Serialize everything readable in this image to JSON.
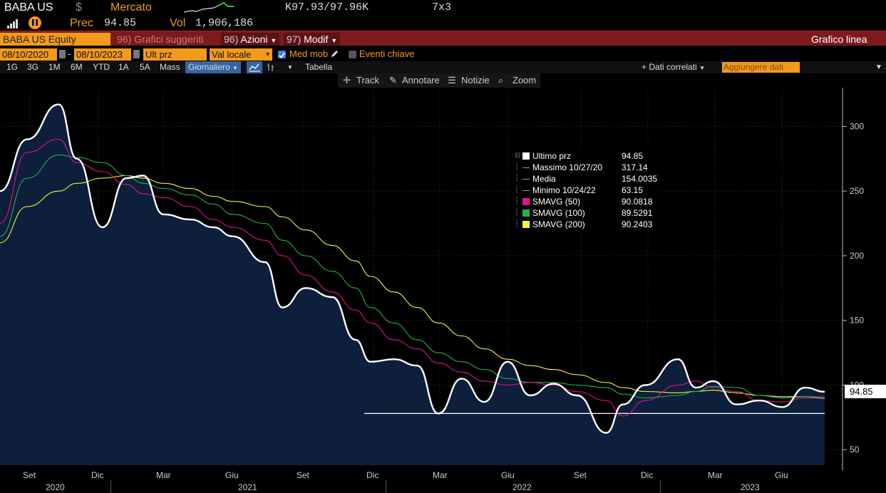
{
  "quote": {
    "ticker": "BABA US",
    "currency_symbol": "$",
    "market": "Mercato",
    "bid_ask": "K97.93/97.96K",
    "size": "7x3",
    "prev_label": "Prec",
    "prev_value": "94.85",
    "vol_label": "Vol",
    "vol_value": "1,906,186"
  },
  "function_bar": {
    "security": "BABA US Equity",
    "suggested": "96) Grafici suggeriti",
    "actions_num": "96)",
    "actions": "Azioni",
    "modify_num": "97)",
    "modify": "Modif",
    "chart_type": "Grafico linea"
  },
  "controls": {
    "start_date": "08/10/2020",
    "end_date": "08/10/2023",
    "field": "Ult prz",
    "currency": "Val locale",
    "moving_avg_label": "Med mob",
    "key_events_label": "Eventi chiave",
    "ranges": [
      "1G",
      "3G",
      "1M",
      "6M",
      "YTD",
      "1A",
      "5A",
      "Mass"
    ],
    "frequency": "Giornaliero",
    "table_label": "Tabella",
    "related_data": "Dati correlati",
    "add_data": "Aggiungere dati"
  },
  "toolbar": {
    "track": "Track",
    "annotate": "Annotare",
    "news": "Notizie",
    "zoom": "Zoom"
  },
  "legend": {
    "rows": [
      {
        "label": "Ultimo prz",
        "value": "94.85",
        "color": "#ffffff"
      },
      {
        "label": "Massimo 10/27/20",
        "value": "317.14",
        "color": "#888888"
      },
      {
        "label": "Media",
        "value": "154.0035",
        "color": "#888888"
      },
      {
        "label": "Minimo 10/24/22",
        "value": "63.15",
        "color": "#888888"
      },
      {
        "label": "SMAVG (50)",
        "value": "90.0818",
        "color": "#e0138c"
      },
      {
        "label": "SMAVG (100)",
        "value": "89.5291",
        "color": "#22b14c"
      },
      {
        "label": "SMAVG (200)",
        "value": "90.2403",
        "color": "#f5f537"
      }
    ]
  },
  "last_price_tag": "94.85",
  "chart_data": {
    "type": "line",
    "title": "",
    "xlabel": "",
    "ylabel": "",
    "ylim": [
      38,
      330
    ],
    "y_ticks": [
      50,
      100,
      150,
      200,
      250,
      300
    ],
    "y_tick_labels": [
      "50",
      "100",
      "150",
      "200",
      "250",
      "300"
    ],
    "grid": true,
    "x": [
      "2020-08-10",
      "2020-09-15",
      "2020-10-27",
      "2020-11-20",
      "2020-12-24",
      "2021-01-25",
      "2021-02-16",
      "2021-03-15",
      "2021-04-20",
      "2021-05-20",
      "2021-06-15",
      "2021-07-28",
      "2021-08-20",
      "2021-09-20",
      "2021-10-25",
      "2021-11-25",
      "2021-12-15",
      "2022-01-15",
      "2022-02-15",
      "2022-03-15",
      "2022-04-15",
      "2022-05-15",
      "2022-06-15",
      "2022-07-15",
      "2022-08-15",
      "2022-09-15",
      "2022-10-24",
      "2022-11-15",
      "2022-12-15",
      "2023-01-27",
      "2023-02-20",
      "2023-03-15",
      "2023-04-15",
      "2023-05-15",
      "2023-06-15",
      "2023-07-15",
      "2023-08-10"
    ],
    "series": [
      {
        "name": "Ultimo prz",
        "color": "#ffffff",
        "values": [
          250,
          290,
          317,
          275,
          222,
          260,
          262,
          232,
          228,
          222,
          215,
          195,
          160,
          175,
          168,
          135,
          118,
          120,
          115,
          78,
          105,
          87,
          118,
          92,
          101,
          92,
          63,
          85,
          100,
          120,
          98,
          103,
          85,
          88,
          83,
          98,
          94.85
        ]
      },
      {
        "name": "SMAVG (50)",
        "color": "#e0138c",
        "values": [
          225,
          280,
          290,
          272,
          265,
          255,
          248,
          245,
          238,
          228,
          222,
          212,
          200,
          185,
          172,
          158,
          148,
          135,
          128,
          117,
          110,
          103,
          100,
          102,
          100,
          95,
          88,
          76,
          88,
          100,
          103,
          98,
          95,
          88,
          87,
          90,
          90.08
        ]
      },
      {
        "name": "SMAVG (100)",
        "color": "#22b14c",
        "values": [
          215,
          260,
          278,
          276,
          272,
          262,
          256,
          252,
          247,
          240,
          232,
          225,
          212,
          200,
          188,
          175,
          160,
          148,
          135,
          125,
          118,
          112,
          105,
          102,
          102,
          100,
          98,
          93,
          90,
          92,
          95,
          99,
          98,
          92,
          90,
          91,
          89.53
        ]
      },
      {
        "name": "SMAVG (200)",
        "color": "#f5f537",
        "values": [
          210,
          238,
          250,
          256,
          260,
          262,
          260,
          256,
          252,
          246,
          242,
          238,
          230,
          220,
          208,
          196,
          184,
          172,
          160,
          148,
          138,
          128,
          120,
          115,
          112,
          108,
          102,
          98,
          95,
          94,
          95,
          96,
          94,
          92,
          91,
          91,
          90.24
        ]
      }
    ],
    "support_line": 78,
    "x_months": [
      "Set",
      "Dic",
      "Mar",
      "Giu",
      "Set",
      "Dic",
      "Mar",
      "Giu",
      "Set",
      "Dic",
      "Mar",
      "Giu"
    ],
    "x_years": [
      "2020",
      "2021",
      "2022",
      "2023"
    ]
  }
}
